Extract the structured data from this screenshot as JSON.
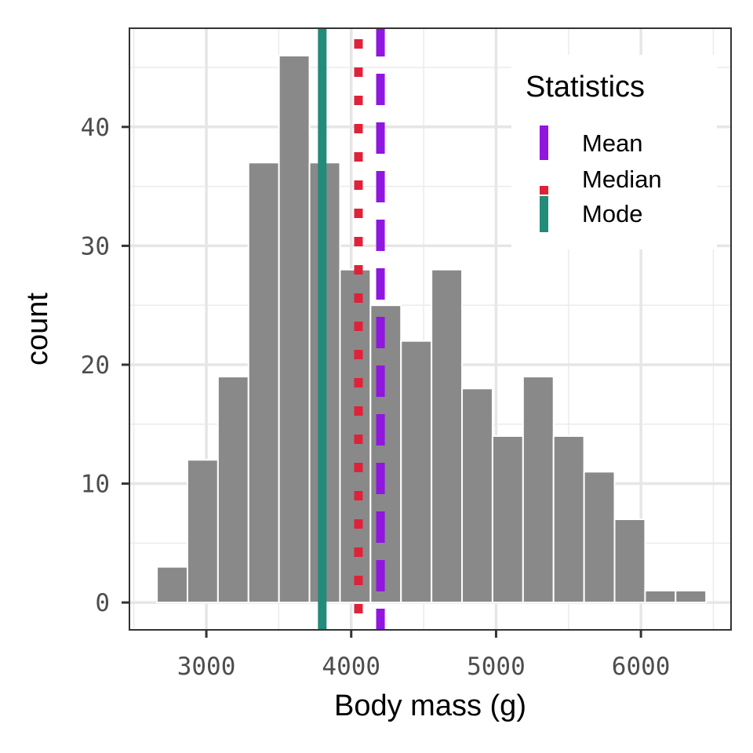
{
  "chart_data": {
    "type": "bar",
    "subtype": "histogram",
    "title": "",
    "xlabel": "Body mass (g)",
    "ylabel": "count",
    "xlim": [
      2469,
      6622
    ],
    "ylim": [
      -2.3,
      48.3
    ],
    "x_ticks": [
      3000,
      4000,
      5000,
      6000
    ],
    "x_tick_labels": [
      "3000",
      "4000",
      "5000",
      "6000"
    ],
    "y_ticks": [
      0,
      10,
      20,
      30,
      40
    ],
    "y_tick_labels": [
      "0",
      "10",
      "20",
      "30",
      "40"
    ],
    "grid": true,
    "bar_color": "#898989",
    "bins": {
      "start": 2659,
      "width": 210.6,
      "counts": [
        3,
        12,
        19,
        37,
        46,
        37,
        28,
        25,
        22,
        28,
        18,
        14,
        19,
        14,
        11,
        7,
        1,
        1
      ]
    },
    "vlines": [
      {
        "name": "Mean",
        "x": 4202,
        "color": "#9016e0",
        "linetype": "dashed"
      },
      {
        "name": "Median",
        "x": 4050,
        "color": "#e0213a",
        "linetype": "dotted"
      },
      {
        "name": "Mode",
        "x": 3800,
        "color": "#228b7a",
        "linetype": "solid"
      }
    ],
    "legend": {
      "title": "Statistics",
      "position": "top-right (inside)",
      "entries": [
        "Mean",
        "Median",
        "Mode"
      ]
    }
  }
}
